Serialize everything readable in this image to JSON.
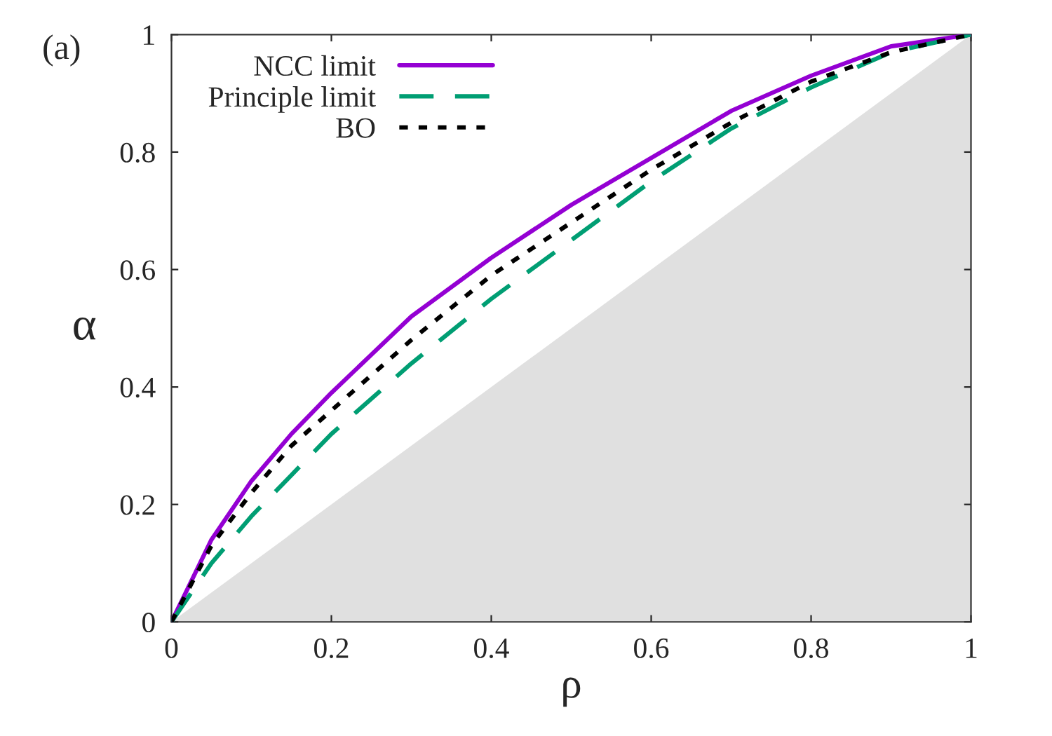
{
  "chart_data": {
    "type": "line",
    "xlabel": "ρ",
    "ylabel": "α",
    "annotations": [
      "(a)"
    ],
    "xlim": [
      0,
      1
    ],
    "ylim": [
      0,
      1
    ],
    "xticks": [
      0,
      0.2,
      0.4,
      0.6,
      0.8,
      1
    ],
    "yticks": [
      0,
      0.2,
      0.4,
      0.6,
      0.8,
      1
    ],
    "x": [
      0,
      0.05,
      0.1,
      0.15,
      0.2,
      0.3,
      0.4,
      0.5,
      0.6,
      0.7,
      0.8,
      0.9,
      1
    ],
    "grid": false,
    "legend": "top left",
    "series": [
      {
        "name": "NCC limit",
        "color": "#9400d3",
        "line_style": "solid",
        "values": [
          0,
          0.14,
          0.24,
          0.32,
          0.39,
          0.52,
          0.62,
          0.71,
          0.79,
          0.87,
          0.93,
          0.98,
          1
        ]
      },
      {
        "name": "Principle limit",
        "color": "#009e73",
        "line_style": "dashed",
        "values": [
          0,
          0.1,
          0.18,
          0.25,
          0.32,
          0.44,
          0.55,
          0.65,
          0.75,
          0.84,
          0.91,
          0.97,
          1
        ]
      },
      {
        "name": "BO",
        "color": "#000000",
        "line_style": "dotted",
        "values": [
          0,
          0.13,
          0.22,
          0.3,
          0.36,
          0.48,
          0.59,
          0.68,
          0.77,
          0.85,
          0.92,
          0.97,
          1
        ]
      }
    ]
  }
}
